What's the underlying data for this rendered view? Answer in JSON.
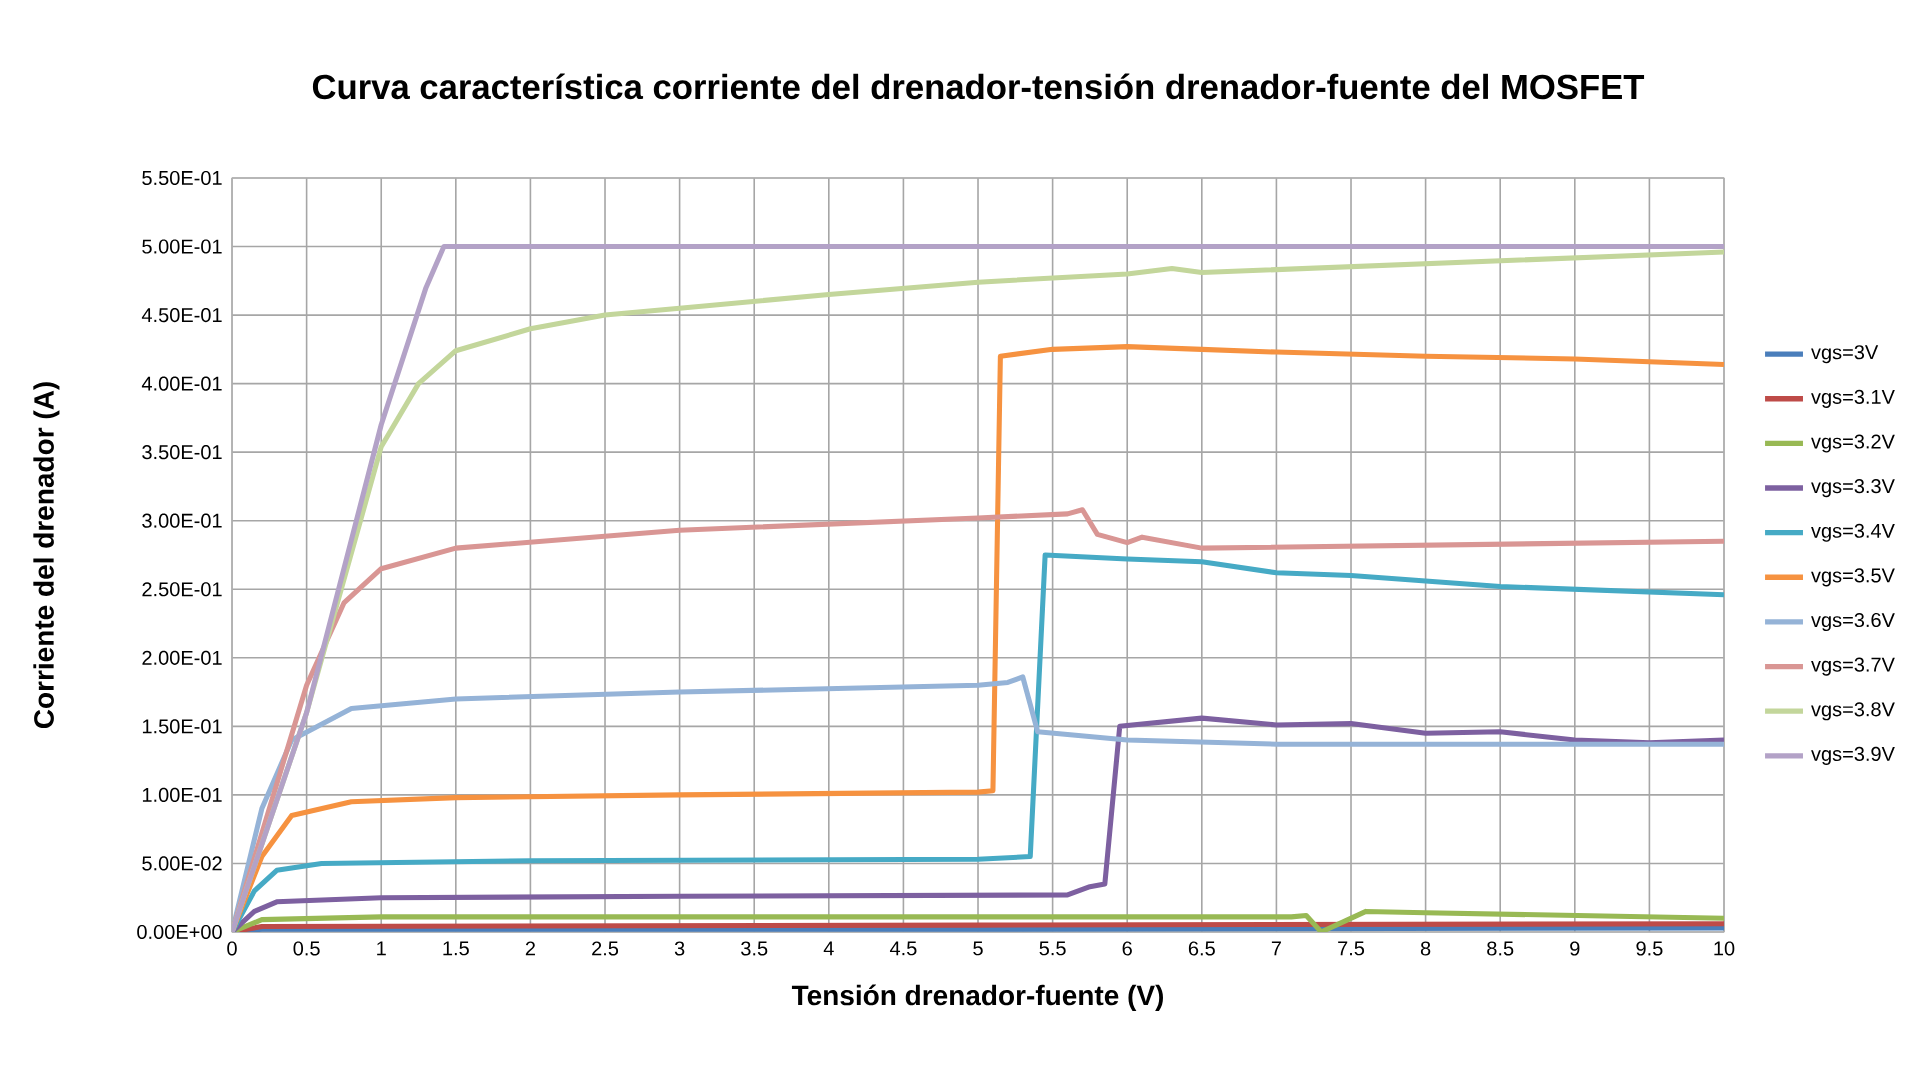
{
  "chart_data": {
    "type": "line",
    "title": "Curva característica corriente del drenador-tensión drenador-fuente del MOSFET",
    "xlabel": "Tensión drenador-fuente (V)",
    "ylabel": "Corriente del drenador (A)",
    "xlim": [
      0,
      10
    ],
    "ylim": [
      0,
      0.55
    ],
    "xticks": [
      0,
      0.5,
      1,
      1.5,
      2,
      2.5,
      3,
      3.5,
      4,
      4.5,
      5,
      5.5,
      6,
      6.5,
      7,
      7.5,
      8,
      8.5,
      9,
      9.5,
      10
    ],
    "yticks": [
      {
        "value": 0,
        "label": "0.00E+00"
      },
      {
        "value": 0.05,
        "label": "5.00E-02"
      },
      {
        "value": 0.1,
        "label": "1.00E-01"
      },
      {
        "value": 0.15,
        "label": "1.50E-01"
      },
      {
        "value": 0.2,
        "label": "2.00E-01"
      },
      {
        "value": 0.25,
        "label": "2.50E-01"
      },
      {
        "value": 0.3,
        "label": "3.00E-01"
      },
      {
        "value": 0.35,
        "label": "3.50E-01"
      },
      {
        "value": 0.4,
        "label": "4.00E-01"
      },
      {
        "value": 0.45,
        "label": "4.50E-01"
      },
      {
        "value": 0.5,
        "label": "5.00E-01"
      },
      {
        "value": 0.55,
        "label": "5.50E-01"
      }
    ],
    "grid": true,
    "legend": "right",
    "marker": "none",
    "line_style": "solid",
    "series": [
      {
        "name": "vgs=3V",
        "color": "#4a7ebb",
        "x": [
          0,
          0.2,
          5,
          10
        ],
        "values": [
          0,
          0.002,
          0.002,
          0.003
        ]
      },
      {
        "name": "vgs=3.1V",
        "color": "#be4b48",
        "x": [
          0,
          0.2,
          5,
          10
        ],
        "values": [
          0,
          0.004,
          0.005,
          0.006
        ]
      },
      {
        "name": "vgs=3.2V",
        "color": "#98b954",
        "x": [
          0,
          0.2,
          1,
          5,
          7.1,
          7.2,
          7.3,
          7.4,
          7.6,
          8,
          9,
          10
        ],
        "values": [
          0,
          0.009,
          0.011,
          0.011,
          0.011,
          0.012,
          0,
          0.005,
          0.015,
          0.014,
          0.012,
          0.01
        ]
      },
      {
        "name": "vgs=3.3V",
        "color": "#7d60a0",
        "x": [
          0,
          0.15,
          0.3,
          1,
          3,
          5.6,
          5.75,
          5.85,
          5.95,
          6.5,
          7,
          7.5,
          8,
          8.5,
          9,
          9.5,
          10
        ],
        "values": [
          0,
          0.015,
          0.022,
          0.025,
          0.026,
          0.027,
          0.033,
          0.035,
          0.15,
          0.156,
          0.151,
          0.152,
          0.145,
          0.146,
          0.14,
          0.138,
          0.14
        ]
      },
      {
        "name": "vgs=3.4V",
        "color": "#46aac5",
        "x": [
          0,
          0.15,
          0.3,
          0.6,
          2,
          5,
          5.35,
          5.45,
          6,
          6.5,
          7,
          7.5,
          8,
          8.5,
          9,
          9.5,
          10
        ],
        "values": [
          0,
          0.03,
          0.045,
          0.05,
          0.052,
          0.053,
          0.055,
          0.275,
          0.272,
          0.27,
          0.262,
          0.26,
          0.256,
          0.252,
          0.25,
          0.248,
          0.246
        ]
      },
      {
        "name": "vgs=3.5V",
        "color": "#f69240",
        "x": [
          0,
          0.2,
          0.4,
          0.8,
          1.5,
          3,
          5,
          5.1,
          5.15,
          5.5,
          6,
          6.5,
          7,
          8,
          9,
          10
        ],
        "values": [
          0,
          0.055,
          0.085,
          0.095,
          0.098,
          0.1,
          0.102,
          0.103,
          0.42,
          0.425,
          0.427,
          0.425,
          0.423,
          0.42,
          0.418,
          0.414
        ]
      },
      {
        "name": "vgs=3.6V",
        "color": "#95b3d7",
        "x": [
          0,
          0.2,
          0.4,
          0.8,
          1.5,
          3,
          5,
          5.2,
          5.3,
          5.4,
          6,
          7,
          10
        ],
        "values": [
          0,
          0.09,
          0.14,
          0.163,
          0.17,
          0.175,
          0.18,
          0.182,
          0.186,
          0.146,
          0.14,
          0.137,
          0.137
        ]
      },
      {
        "name": "vgs=3.7V",
        "color": "#d99694",
        "x": [
          0,
          0.5,
          0.75,
          1,
          1.5,
          3,
          5,
          5.6,
          5.7,
          5.8,
          6,
          6.1,
          6.5,
          10
        ],
        "values": [
          0,
          0.18,
          0.24,
          0.265,
          0.28,
          0.293,
          0.302,
          0.305,
          0.308,
          0.29,
          0.284,
          0.288,
          0.28,
          0.285
        ]
      },
      {
        "name": "vgs=3.8V",
        "color": "#c3d69b",
        "x": [
          0,
          0.5,
          1,
          1.25,
          1.5,
          2,
          2.5,
          3,
          4,
          5,
          6,
          6.3,
          6.5,
          10
        ],
        "values": [
          0,
          0.16,
          0.354,
          0.4,
          0.424,
          0.44,
          0.45,
          0.455,
          0.465,
          0.474,
          0.48,
          0.484,
          0.481,
          0.496
        ]
      },
      {
        "name": "vgs=3.9V",
        "color": "#b3a2c7",
        "x": [
          0,
          0.5,
          1,
          1.3,
          1.42,
          1.5,
          10
        ],
        "values": [
          0,
          0.16,
          0.37,
          0.47,
          0.5,
          0.5,
          0.5
        ]
      }
    ]
  }
}
